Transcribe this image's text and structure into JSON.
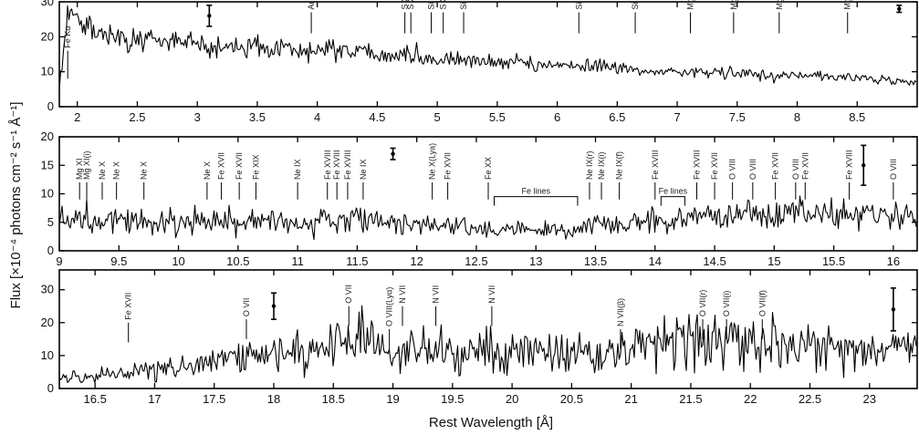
{
  "chart_data": [
    {
      "type": "line",
      "xlim": [
        1.85,
        9.0
      ],
      "ylim": [
        0,
        30
      ],
      "xticks": [
        2,
        2.5,
        3,
        3.5,
        4,
        4.5,
        5,
        5.5,
        6,
        6.5,
        7,
        7.5,
        8,
        8.5
      ],
      "xtick_labels": [
        "2",
        "2.5",
        "3",
        "3.5",
        "4",
        "4.5",
        "5",
        "5.5",
        "6",
        "6.5",
        "7",
        "7.5",
        "8",
        "8.5"
      ],
      "yticks": [
        0,
        10,
        20,
        30
      ],
      "ytick_labels": [
        "0",
        "10",
        "20",
        "30"
      ],
      "series": [
        {
          "x": [
            1.85,
            1.9,
            1.95,
            2.0,
            2.1,
            2.2,
            2.3,
            2.5,
            2.75,
            3.0,
            3.25,
            3.5,
            3.75,
            4.0,
            4.25,
            4.5,
            4.75,
            5.0,
            5.25,
            5.5,
            5.75,
            6.0,
            6.25,
            6.5,
            6.75,
            7.0,
            7.25,
            7.5,
            7.75,
            8.0,
            8.25,
            8.5,
            8.75,
            9.0
          ],
          "values": [
            5,
            20,
            32,
            25,
            22,
            21,
            20,
            19,
            18.5,
            18,
            17.5,
            17,
            16.5,
            16,
            15.5,
            15,
            14.5,
            14,
            13.5,
            13,
            12.5,
            12,
            11.5,
            11,
            10.5,
            10,
            9.5,
            9.5,
            9,
            9,
            8.5,
            8,
            7.5,
            7
          ]
        }
      ],
      "error_bars": [
        {
          "x": 3.1,
          "y": 26,
          "err": 3
        },
        {
          "x": 8.85,
          "y": 28,
          "err": 1
        }
      ],
      "line_ids": [
        {
          "label": "Fe Kα",
          "x": 1.92,
          "y_top": 16,
          "y_bottom": 8
        },
        {
          "label": "Ar XVII",
          "x": 3.95,
          "y_top": 27,
          "y_bottom": 21
        },
        {
          "label": "S XVI",
          "x": 4.73,
          "y_top": 27,
          "y_bottom": 21
        },
        {
          "label": "S XV",
          "x": 4.78,
          "y_top": 27,
          "y_bottom": 21
        },
        {
          "label": "Si XIV",
          "x": 4.95,
          "y_top": 27,
          "y_bottom": 21
        },
        {
          "label": "S XV",
          "x": 5.05,
          "y_top": 27,
          "y_bottom": 21
        },
        {
          "label": "Si XIV",
          "x": 5.22,
          "y_top": 27,
          "y_bottom": 21
        },
        {
          "label": "Si XIV",
          "x": 6.18,
          "y_top": 27,
          "y_bottom": 21
        },
        {
          "label": "Si XIII",
          "x": 6.65,
          "y_top": 27,
          "y_bottom": 21
        },
        {
          "label": "Mg XII",
          "x": 7.11,
          "y_top": 27,
          "y_bottom": 21
        },
        {
          "label": "Mg XI",
          "x": 7.47,
          "y_top": 27,
          "y_bottom": 21
        },
        {
          "label": "Mg XI",
          "x": 7.85,
          "y_top": 27,
          "y_bottom": 21
        },
        {
          "label": "Mg XII",
          "x": 8.42,
          "y_top": 27,
          "y_bottom": 21
        }
      ]
    },
    {
      "type": "line",
      "xlim": [
        9.0,
        16.2
      ],
      "ylim": [
        0,
        20
      ],
      "xticks": [
        9,
        9.5,
        10,
        10.5,
        11,
        11.5,
        12,
        12.5,
        13,
        13.5,
        14,
        14.5,
        15,
        15.5,
        16
      ],
      "xtick_labels": [
        "9",
        "9.5",
        "10",
        "10.5",
        "11",
        "11.5",
        "12",
        "12.5",
        "13",
        "13.5",
        "14",
        "14.5",
        "15",
        "15.5",
        "16"
      ],
      "yticks": [
        0,
        5,
        10,
        15,
        20
      ],
      "ytick_labels": [
        "0",
        "5",
        "10",
        "15",
        "20"
      ],
      "series": [
        {
          "x": [
            9.0,
            9.25,
            9.5,
            9.75,
            10.0,
            10.25,
            10.5,
            10.75,
            11.0,
            11.25,
            11.5,
            11.75,
            12.0,
            12.25,
            12.5,
            12.75,
            13.0,
            13.25,
            13.5,
            13.75,
            14.0,
            14.25,
            14.5,
            14.75,
            15.0,
            15.25,
            15.5,
            15.75,
            16.0,
            16.2
          ],
          "values": [
            5,
            5.5,
            5.5,
            5,
            5,
            5.5,
            5.5,
            5,
            5,
            5.5,
            5.5,
            5,
            4.5,
            4.5,
            4,
            3.5,
            3.5,
            3.5,
            4.5,
            5,
            5,
            5.5,
            6,
            6,
            6.5,
            6.5,
            6.5,
            6,
            6,
            6
          ]
        }
      ],
      "error_bars": [
        {
          "x": 11.8,
          "y": 17,
          "err": 1
        },
        {
          "x": 15.75,
          "y": 15,
          "err": 3.5
        }
      ],
      "line_ids": [
        {
          "label": "Mg XI",
          "x": 9.17,
          "y_top": 12,
          "y_bottom": 9
        },
        {
          "label": "Mg XI(i)",
          "x": 9.23,
          "y_top": 12,
          "y_bottom": 9
        },
        {
          "label": "Ne X",
          "x": 9.36,
          "y_top": 12,
          "y_bottom": 9
        },
        {
          "label": "Ne X",
          "x": 9.48,
          "y_top": 12,
          "y_bottom": 9
        },
        {
          "label": "Ne X",
          "x": 9.71,
          "y_top": 12,
          "y_bottom": 9
        },
        {
          "label": "Ne X",
          "x": 10.24,
          "y_top": 12,
          "y_bottom": 9
        },
        {
          "label": "Fe XVII",
          "x": 10.36,
          "y_top": 12,
          "y_bottom": 9
        },
        {
          "label": "Fe XVII",
          "x": 10.51,
          "y_top": 12,
          "y_bottom": 9
        },
        {
          "label": "Fe XIX",
          "x": 10.65,
          "y_top": 12,
          "y_bottom": 9
        },
        {
          "label": "Ne IX",
          "x": 11.0,
          "y_top": 12,
          "y_bottom": 9
        },
        {
          "label": "Fe XVIII",
          "x": 11.25,
          "y_top": 12,
          "y_bottom": 9
        },
        {
          "label": "Fe XVIII",
          "x": 11.33,
          "y_top": 12,
          "y_bottom": 9
        },
        {
          "label": "Fe XVIII",
          "x": 11.42,
          "y_top": 12,
          "y_bottom": 9
        },
        {
          "label": "Ne IX",
          "x": 11.55,
          "y_top": 12,
          "y_bottom": 9
        },
        {
          "label": "Ne X(Lya)",
          "x": 12.13,
          "y_top": 12,
          "y_bottom": 9
        },
        {
          "label": "Fe XVII",
          "x": 12.26,
          "y_top": 12,
          "y_bottom": 9
        },
        {
          "label": "Fe XX",
          "x": 12.6,
          "y_top": 12,
          "y_bottom": 9
        },
        {
          "label": "Ne IX(r)",
          "x": 13.45,
          "y_top": 12,
          "y_bottom": 9
        },
        {
          "label": "Ne IX(i)",
          "x": 13.55,
          "y_top": 12,
          "y_bottom": 9
        },
        {
          "label": "Ne IX(f)",
          "x": 13.7,
          "y_top": 12,
          "y_bottom": 9
        },
        {
          "label": "Fe XVIII",
          "x": 14.0,
          "y_top": 12,
          "y_bottom": 9
        },
        {
          "label": "Fe XVIII",
          "x": 14.35,
          "y_top": 12,
          "y_bottom": 9
        },
        {
          "label": "Fe XVII",
          "x": 14.5,
          "y_top": 12,
          "y_bottom": 9
        },
        {
          "label": "O VIII",
          "x": 14.65,
          "y_top": 12,
          "y_bottom": 9
        },
        {
          "label": "O VIII",
          "x": 14.82,
          "y_top": 12,
          "y_bottom": 9
        },
        {
          "label": "Fe XVII",
          "x": 15.01,
          "y_top": 12,
          "y_bottom": 9
        },
        {
          "label": "O VIII",
          "x": 15.18,
          "y_top": 12,
          "y_bottom": 9
        },
        {
          "label": "Fe XVII",
          "x": 15.26,
          "y_top": 12,
          "y_bottom": 9
        },
        {
          "label": "Fe XVIII",
          "x": 15.63,
          "y_top": 12,
          "y_bottom": 9
        },
        {
          "label": "O VIII",
          "x": 16.0,
          "y_top": 12,
          "y_bottom": 9
        }
      ],
      "bracket_labels": [
        {
          "label": "Fe lines",
          "x_start": 12.65,
          "x_end": 13.35,
          "y": 9.5
        },
        {
          "label": "Fe lines",
          "x_start": 14.05,
          "x_end": 14.25,
          "y": 9.5
        }
      ]
    },
    {
      "type": "line",
      "xlim": [
        16.2,
        23.4
      ],
      "ylim": [
        0,
        36
      ],
      "xticks": [
        16.5,
        17,
        17.5,
        18,
        18.5,
        19,
        19.5,
        20,
        20.5,
        21,
        21.5,
        22,
        22.5,
        23
      ],
      "xtick_labels": [
        "16.5",
        "17",
        "17.5",
        "18",
        "18.5",
        "19",
        "19.5",
        "20",
        "20.5",
        "21",
        "21.5",
        "22",
        "22.5",
        "23"
      ],
      "yticks": [
        0,
        10,
        20,
        30
      ],
      "ytick_labels": [
        "0",
        "10",
        "20",
        "30"
      ],
      "series": [
        {
          "x": [
            16.2,
            16.5,
            16.75,
            17.0,
            17.25,
            17.5,
            17.75,
            18.0,
            18.25,
            18.5,
            18.75,
            19.0,
            19.25,
            19.5,
            19.75,
            20.0,
            20.25,
            20.5,
            20.75,
            21.0,
            21.25,
            21.5,
            21.75,
            22.0,
            22.25,
            22.5,
            22.75,
            23.0,
            23.25,
            23.4
          ],
          "values": [
            3,
            4,
            5,
            6,
            7,
            8,
            10,
            11,
            12,
            14,
            16,
            10,
            12,
            12,
            12,
            11,
            11,
            11,
            11,
            12,
            14,
            15,
            15,
            14,
            14,
            13,
            13,
            12,
            12,
            12
          ]
        }
      ],
      "error_bars": [
        {
          "x": 18.0,
          "y": 25,
          "err": 4
        },
        {
          "x": 23.2,
          "y": 24,
          "err": 6.5
        }
      ],
      "line_ids": [
        {
          "label": "Fe XVII",
          "x": 16.78,
          "y_top": 20,
          "y_bottom": 14
        },
        {
          "label": "O VII",
          "x": 17.77,
          "y_top": 21,
          "y_bottom": 15
        },
        {
          "label": "O VII",
          "x": 18.63,
          "y_top": 25,
          "y_bottom": 19
        },
        {
          "label": "O VIII(Lyα)",
          "x": 18.97,
          "y_top": 18,
          "y_bottom": 12
        },
        {
          "label": "N VII",
          "x": 19.08,
          "y_top": 25,
          "y_bottom": 19
        },
        {
          "label": "N VII",
          "x": 19.36,
          "y_top": 25,
          "y_bottom": 19
        },
        {
          "label": "N VII",
          "x": 19.83,
          "y_top": 25,
          "y_bottom": 19
        },
        {
          "label": "N VII(β)",
          "x": 20.91,
          "y_top": 18,
          "y_bottom": 12
        },
        {
          "label": "O VII(r)",
          "x": 21.6,
          "y_top": 21,
          "y_bottom": 15
        },
        {
          "label": "O VII(i)",
          "x": 21.8,
          "y_top": 21,
          "y_bottom": 15
        },
        {
          "label": "O VII(f)",
          "x": 22.1,
          "y_top": 21,
          "y_bottom": 15
        }
      ]
    }
  ],
  "labels": {
    "y_axis": "Flux [×10⁻⁴ photons cm⁻² s⁻¹ Å⁻¹]",
    "x_axis": "Rest Wavelength [Å]"
  }
}
